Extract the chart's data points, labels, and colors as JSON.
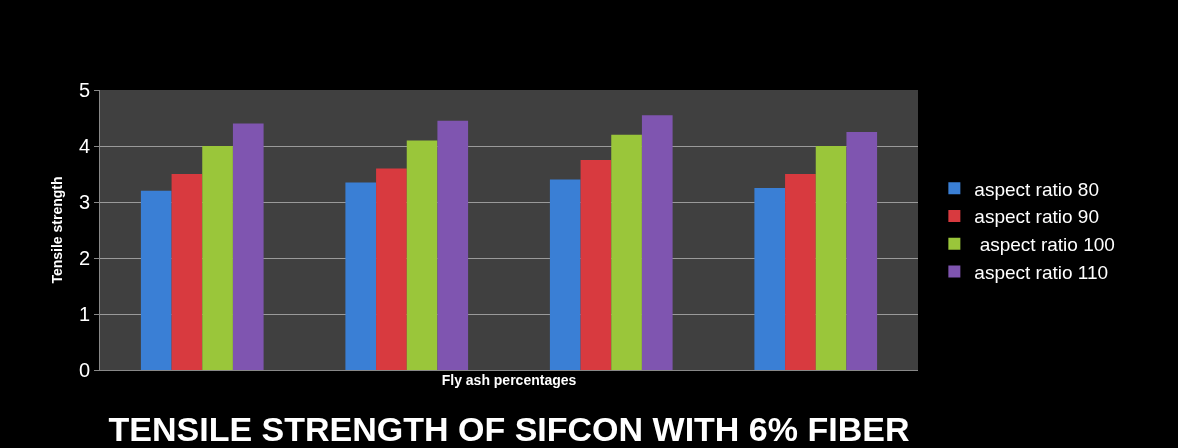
{
  "chart_data": {
    "type": "bar",
    "title": "TENSILE STRENGTH OF SIFCON WITH 6% FIBER",
    "xlabel": "Fly ash percentages",
    "ylabel": "Tensile strength",
    "categories": [
      null,
      null,
      null,
      null
    ],
    "series": [
      {
        "name": "aspect ratio 80",
        "color": "#3a7fd5",
        "values": [
          3.2,
          3.35,
          3.4,
          3.25
        ]
      },
      {
        "name": "aspect ratio 90",
        "color": "#d83a3f",
        "values": [
          3.5,
          3.6,
          3.75,
          3.5
        ]
      },
      {
        "name": " aspect ratio 100",
        "color": "#9ac63a",
        "values": [
          4.0,
          4.1,
          4.2,
          4.0
        ]
      },
      {
        "name": "aspect ratio 110",
        "color": "#7f55b0",
        "values": [
          4.4,
          4.45,
          4.55,
          4.25
        ]
      }
    ],
    "ylim": [
      0,
      5
    ],
    "yticks": [
      0,
      1,
      2,
      3,
      4,
      5
    ],
    "grid": "y",
    "legend": "right"
  }
}
